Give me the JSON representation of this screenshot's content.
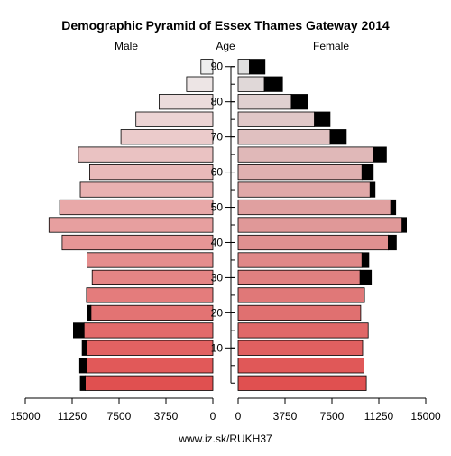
{
  "chart_data": {
    "type": "bar",
    "title": "Demographic Pyramid of Essex Thames Gateway 2014",
    "left_label": "Male",
    "center_label": "Age",
    "right_label": "Female",
    "footer": "www.iz.sk/RUKH37",
    "x_ticks_left": [
      "15000",
      "11250",
      "7500",
      "3750",
      "0"
    ],
    "x_ticks_right": [
      "0",
      "3750",
      "7500",
      "11250",
      "15000"
    ],
    "x_max": 15000,
    "age_ticks": [
      "10",
      "20",
      "30",
      "40",
      "50",
      "60",
      "70",
      "80",
      "90"
    ],
    "age_groups": [
      "0-4",
      "5-9",
      "10-14",
      "15-19",
      "20-24",
      "25-29",
      "30-34",
      "35-39",
      "40-44",
      "45-49",
      "50-54",
      "55-59",
      "60-64",
      "65-69",
      "70-74",
      "75-79",
      "80-84",
      "85-89",
      "90+"
    ],
    "series": [
      {
        "name": "Male",
        "total": [
          10600,
          10650,
          10450,
          11150,
          10050,
          10100,
          9650,
          10050,
          12050,
          13100,
          12250,
          10600,
          9850,
          10750,
          7350,
          6150,
          4300,
          2100,
          950
        ],
        "excess": [
          400,
          550,
          400,
          850,
          300,
          0,
          0,
          0,
          0,
          0,
          0,
          0,
          0,
          0,
          0,
          0,
          0,
          0,
          0
        ]
      },
      {
        "name": "Female",
        "total": [
          10250,
          10050,
          9950,
          10400,
          9800,
          10100,
          10650,
          10450,
          12650,
          13450,
          12600,
          10950,
          10800,
          11850,
          8650,
          7350,
          5600,
          3550,
          2150
        ],
        "excess": [
          0,
          0,
          0,
          0,
          0,
          0,
          900,
          550,
          650,
          350,
          400,
          400,
          900,
          1050,
          1300,
          1250,
          1350,
          1450,
          1250
        ]
      }
    ],
    "colors": {
      "young_male": "#e05050",
      "old_male": "#eeeeee",
      "young_female": "#e05050",
      "old_female": "#e0e0e0",
      "excess": "#000000"
    }
  }
}
